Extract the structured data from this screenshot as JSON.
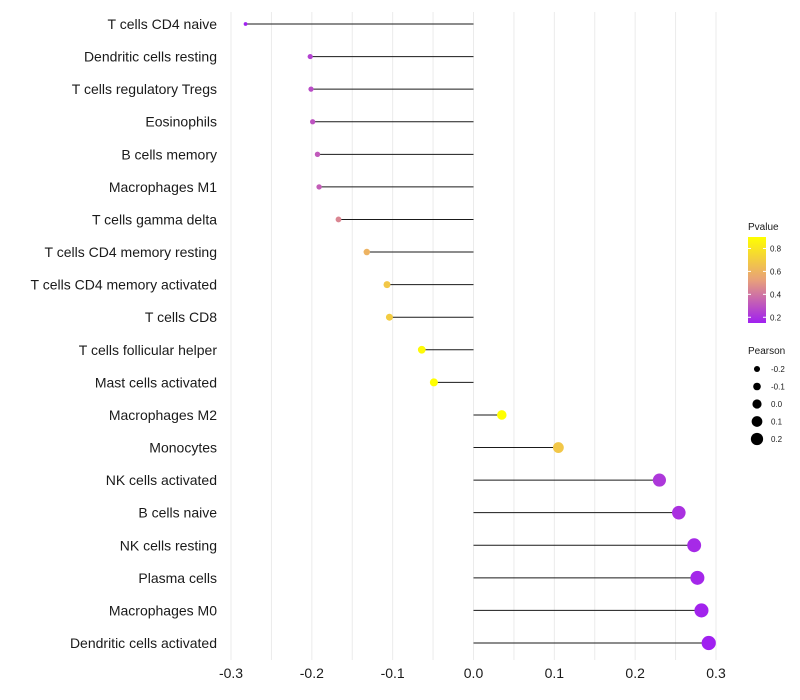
{
  "chart_data": {
    "type": "lollipop",
    "title": "",
    "xlabel": "",
    "ylabel": "",
    "xlim": [
      -0.3,
      0.3
    ],
    "xticks": [
      -0.3,
      -0.2,
      -0.1,
      0.0,
      0.1,
      0.2,
      0.3
    ],
    "xtick_labels": [
      "-0.3",
      "-0.2",
      "-0.1",
      "0.0",
      "0.1",
      "0.2",
      "0.3"
    ],
    "grid": true,
    "categories": [
      "T cells CD4 naive",
      "Dendritic cells resting",
      "T cells regulatory  Tregs",
      "Eosinophils",
      "B cells memory",
      "Macrophages M1",
      "T cells gamma delta",
      "T cells CD4 memory resting",
      "T cells CD4 memory activated",
      "T cells CD8",
      "T cells follicular helper",
      "Mast cells activated",
      "Macrophages M2",
      "Monocytes",
      "NK cells activated",
      "B cells naive",
      "NK cells resting",
      "Plasma cells",
      "Macrophages M0",
      "Dendritic cells activated"
    ],
    "values": [
      -0.282,
      -0.202,
      -0.201,
      -0.199,
      -0.193,
      -0.191,
      -0.167,
      -0.132,
      -0.107,
      -0.104,
      -0.064,
      -0.049,
      0.035,
      0.105,
      0.23,
      0.254,
      0.273,
      0.277,
      0.282,
      0.291
    ],
    "pvalues": [
      0.05,
      0.25,
      0.28,
      0.3,
      0.32,
      0.33,
      0.45,
      0.6,
      0.68,
      0.7,
      0.88,
      0.9,
      0.9,
      0.68,
      0.22,
      0.2,
      0.18,
      0.17,
      0.16,
      0.15
    ],
    "color_legend": {
      "title": "Pvalue",
      "ticks": [
        0.2,
        0.4,
        0.6,
        0.8
      ],
      "tick_labels": [
        "0.2",
        "0.4",
        "0.6",
        "0.8"
      ],
      "range": [
        0.15,
        0.9
      ],
      "low_color": "#a020f0",
      "mid_color": "#e8a07a",
      "high_color": "#ffff00"
    },
    "size_legend": {
      "title": "Pearson",
      "values": [
        -0.2,
        -0.1,
        0.0,
        0.1,
        0.2
      ],
      "labels": [
        "-0.2",
        "-0.1",
        "0.0",
        "0.1",
        "0.2"
      ]
    },
    "legend_position": "right"
  }
}
